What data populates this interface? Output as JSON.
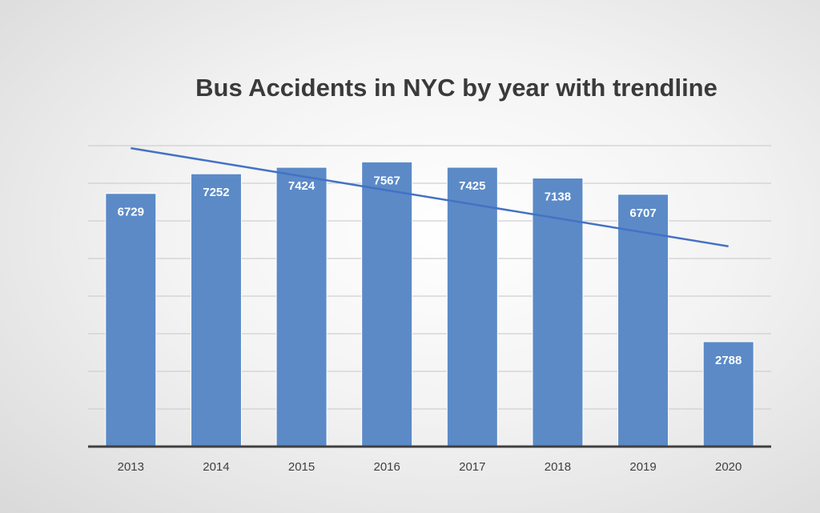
{
  "chart_data": {
    "type": "bar",
    "title": "Bus Accidents in NYC by year with trendline",
    "categories": [
      "2013",
      "2014",
      "2015",
      "2016",
      "2017",
      "2018",
      "2019",
      "2020"
    ],
    "values": [
      6729,
      7252,
      7424,
      7567,
      7425,
      7138,
      6707,
      2788
    ],
    "data_labels": [
      "6729",
      "7252",
      "7424",
      "7567",
      "7425",
      "7138",
      "6707",
      "2788"
    ],
    "ylim": [
      0,
      8000
    ],
    "y_major_unit": 1000,
    "trendline": {
      "type": "linear",
      "color": "#4472c4"
    },
    "bar_color": "#5b8ac7",
    "grid": true,
    "legend": "none"
  }
}
